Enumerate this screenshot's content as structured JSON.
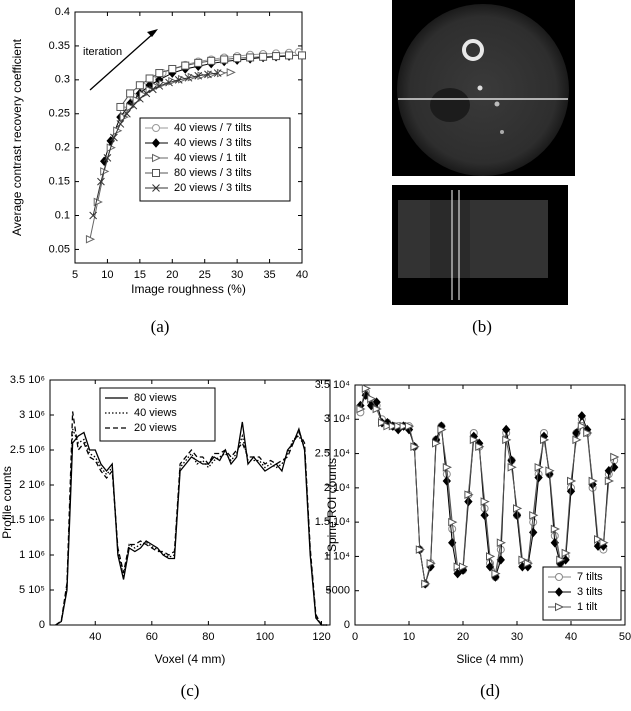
{
  "chart_data": [
    {
      "type": "line",
      "caption": "(a)",
      "xlabel": "Image roughness (%)",
      "ylabel": "Average contrast recovery coefficient",
      "xlim": [
        5,
        40
      ],
      "xticks": [
        5,
        10,
        15,
        20,
        25,
        30,
        35,
        40
      ],
      "ylim": [
        0.03,
        0.4
      ],
      "yticks": [
        0.05,
        0.1,
        0.15,
        0.2,
        0.25,
        0.3,
        0.35,
        0.4
      ],
      "legend": "center-right",
      "annotation": "iteration",
      "series": [
        {
          "name": "40 views / 7 tilts",
          "color": "#999999",
          "marker": "circle",
          "x": [
            12.5,
            14,
            15.5,
            17,
            18.5,
            20,
            22,
            24,
            26,
            28,
            30,
            32,
            34,
            36,
            38,
            39.5
          ],
          "values": [
            0.255,
            0.275,
            0.29,
            0.3,
            0.31,
            0.316,
            0.322,
            0.327,
            0.33,
            0.333,
            0.335,
            0.337,
            0.338,
            0.339,
            0.34,
            0.341
          ]
        },
        {
          "name": "40 views / 3 tilts",
          "color": "#000000",
          "marker": "diamond",
          "x": [
            9.5,
            10.5,
            12,
            13.5,
            15,
            16.5,
            18,
            20,
            22,
            24,
            26,
            28,
            30,
            32,
            34,
            36,
            38
          ],
          "values": [
            0.18,
            0.21,
            0.245,
            0.265,
            0.28,
            0.292,
            0.3,
            0.31,
            0.316,
            0.32,
            0.324,
            0.327,
            0.329,
            0.331,
            0.333,
            0.334,
            0.335
          ]
        },
        {
          "name": "40 views / 1 tilt",
          "color": "#666666",
          "marker": "triangle",
          "x": [
            7.3,
            8.5,
            9.5,
            10.5,
            11.5,
            12.5,
            13.5,
            14.5,
            15.5,
            16.5,
            17.5,
            18.5,
            20,
            21.5,
            23,
            24.5,
            26,
            27.5,
            29
          ],
          "values": [
            0.065,
            0.12,
            0.165,
            0.2,
            0.225,
            0.245,
            0.26,
            0.27,
            0.278,
            0.285,
            0.29,
            0.294,
            0.298,
            0.301,
            0.304,
            0.306,
            0.308,
            0.31,
            0.311
          ]
        },
        {
          "name": "80 views / 3 tilts",
          "color": "#555555",
          "marker": "square",
          "x": [
            12,
            13.5,
            15,
            16.5,
            18,
            20,
            22,
            24,
            26,
            28,
            30,
            32,
            34,
            36,
            38,
            40
          ],
          "values": [
            0.26,
            0.28,
            0.292,
            0.302,
            0.31,
            0.316,
            0.321,
            0.325,
            0.328,
            0.33,
            0.332,
            0.333,
            0.334,
            0.335,
            0.336,
            0.336
          ]
        },
        {
          "name": "20 views / 3 tilts",
          "color": "#333333",
          "marker": "cross",
          "x": [
            7.8,
            9,
            10,
            11,
            12,
            13,
            14,
            15,
            16,
            17,
            18,
            19.5,
            21,
            22.5,
            24,
            25.5,
            27
          ],
          "values": [
            0.1,
            0.15,
            0.185,
            0.215,
            0.235,
            0.25,
            0.262,
            0.272,
            0.28,
            0.286,
            0.291,
            0.296,
            0.3,
            0.303,
            0.306,
            0.308,
            0.31
          ]
        }
      ]
    },
    {
      "type": "line",
      "caption": "(c)",
      "xlabel": "Voxel (4 mm)",
      "ylabel": "Profile counts",
      "xlim": [
        24,
        123
      ],
      "xticks": [
        40,
        60,
        80,
        100,
        120
      ],
      "ylim": [
        0,
        3500000
      ],
      "yticks": [
        0,
        {
          "value": 500000,
          "label": "5 10⁵"
        },
        {
          "value": 1000000,
          "label": "1 10⁶"
        },
        {
          "value": 1500000,
          "label": "1.5 10⁶"
        },
        {
          "value": 2000000,
          "label": "2 10⁶"
        },
        {
          "value": 2500000,
          "label": "2.5 10⁶"
        },
        {
          "value": 3000000,
          "label": "3 10⁶"
        },
        {
          "value": 3500000,
          "label": "3.5 10⁶"
        }
      ],
      "legend": "upper-left",
      "x": [
        26,
        28,
        30,
        32,
        34,
        36,
        38,
        40,
        42,
        44,
        46,
        48,
        50,
        52,
        54,
        56,
        58,
        60,
        62,
        64,
        66,
        68,
        70,
        72,
        74,
        76,
        78,
        80,
        82,
        84,
        86,
        88,
        90,
        92,
        94,
        96,
        98,
        100,
        102,
        104,
        106,
        108,
        110,
        112,
        114,
        116,
        118,
        120,
        122
      ],
      "series": [
        {
          "name": "80 views",
          "color": "#000000",
          "dash": "solid",
          "values": [
            0,
            50000,
            500000,
            2600000,
            2700000,
            2750000,
            2500000,
            2500000,
            2300000,
            2200000,
            2300000,
            1000000,
            650000,
            1100000,
            1050000,
            1100000,
            1200000,
            1150000,
            1100000,
            1000000,
            950000,
            950000,
            2200000,
            2300000,
            2400000,
            2350000,
            2300000,
            2300000,
            2400000,
            2350000,
            2500000,
            2300000,
            2400000,
            2900000,
            2300000,
            2400000,
            2300000,
            2200000,
            2250000,
            2300000,
            2200000,
            2500000,
            2600000,
            2800000,
            2500000,
            1000000,
            100000,
            0,
            0
          ]
        },
        {
          "name": "40 views",
          "color": "#000000",
          "dash": "dotted",
          "values": [
            0,
            50000,
            550000,
            2800000,
            2600000,
            2650000,
            2450000,
            2400000,
            2250000,
            2150000,
            2250000,
            1050000,
            700000,
            1150000,
            1100000,
            1150000,
            1180000,
            1120000,
            1080000,
            1020000,
            970000,
            1000000,
            2250000,
            2350000,
            2450000,
            2300000,
            2350000,
            2250000,
            2350000,
            2400000,
            2450000,
            2350000,
            2450000,
            2700000,
            2350000,
            2350000,
            2350000,
            2250000,
            2300000,
            2250000,
            2300000,
            2450000,
            2650000,
            2700000,
            2550000,
            1050000,
            120000,
            0,
            0
          ]
        },
        {
          "name": "20 views",
          "color": "#000000",
          "dash": "dashed",
          "values": [
            0,
            60000,
            600000,
            3050000,
            2500000,
            2600000,
            2400000,
            2350000,
            2200000,
            2100000,
            2200000,
            1100000,
            750000,
            1150000,
            1150000,
            1200000,
            1150000,
            1100000,
            1050000,
            1050000,
            1000000,
            1050000,
            2300000,
            2400000,
            2500000,
            2400000,
            2400000,
            2300000,
            2450000,
            2450000,
            2500000,
            2400000,
            2500000,
            2600000,
            2400000,
            2400000,
            2400000,
            2300000,
            2350000,
            2300000,
            2350000,
            2400000,
            2600000,
            2750000,
            2600000,
            1100000,
            150000,
            0,
            0
          ]
        }
      ]
    },
    {
      "type": "line",
      "caption": "(d)",
      "xlabel": "Slice (4 mm)",
      "ylabel": "Spine ROI counts",
      "xlim": [
        0,
        50
      ],
      "xticks": [
        0,
        10,
        20,
        30,
        40,
        50
      ],
      "ylim": [
        0,
        35000
      ],
      "yticks": [
        0,
        5000,
        {
          "value": 10000,
          "label": "1 10⁴"
        },
        {
          "value": 15000,
          "label": "1.5 10⁴"
        },
        {
          "value": 20000,
          "label": "2 10⁴"
        },
        {
          "value": 25000,
          "label": "2.5 10⁴"
        },
        {
          "value": 30000,
          "label": "3 10⁴"
        },
        {
          "value": 35000,
          "label": "3.5 10⁴"
        }
      ],
      "legend": "lower-right",
      "x": [
        1,
        2,
        3,
        4,
        5,
        6,
        7,
        8,
        9,
        10,
        11,
        12,
        13,
        14,
        15,
        16,
        17,
        18,
        19,
        20,
        21,
        22,
        23,
        24,
        25,
        26,
        27,
        28,
        29,
        30,
        31,
        32,
        33,
        34,
        35,
        36,
        37,
        38,
        39,
        40,
        41,
        42,
        43,
        44,
        45,
        46,
        47,
        48
      ],
      "series": [
        {
          "name": "7 tilts",
          "color": "#888888",
          "marker": "circle",
          "values": [
            31000,
            34000,
            32500,
            32000,
            30000,
            29500,
            29000,
            29000,
            29000,
            29000,
            26000,
            11000,
            6000,
            9000,
            27000,
            29000,
            22000,
            14000,
            8000,
            8000,
            19000,
            28000,
            26000,
            17000,
            9000,
            7000,
            11000,
            28000,
            24000,
            16000,
            9000,
            9000,
            15000,
            22000,
            28000,
            22000,
            13000,
            9000,
            10000,
            20000,
            28000,
            30000,
            28000,
            20000,
            12000,
            11000,
            22000,
            24000
          ]
        },
        {
          "name": "3 tilts",
          "color": "#000000",
          "marker": "diamond",
          "values": [
            32000,
            33500,
            32000,
            32500,
            29500,
            29500,
            29000,
            28500,
            29000,
            28500,
            26000,
            11000,
            6000,
            8500,
            27000,
            29000,
            21000,
            12000,
            7500,
            8000,
            18000,
            27500,
            26500,
            16000,
            8500,
            7000,
            9500,
            28500,
            24000,
            16000,
            8500,
            8500,
            13500,
            21500,
            27500,
            22000,
            12000,
            9000,
            9500,
            19500,
            28000,
            30500,
            28500,
            20500,
            11500,
            11500,
            22500,
            23000
          ]
        },
        {
          "name": "1 tilt",
          "color": "#555555",
          "marker": "triangle",
          "values": [
            31500,
            34500,
            33000,
            31500,
            29500,
            29000,
            29000,
            29000,
            29000,
            29000,
            26000,
            11000,
            6000,
            9000,
            26500,
            28500,
            23000,
            15000,
            8500,
            8500,
            19000,
            27000,
            26000,
            18000,
            10000,
            7500,
            12000,
            27000,
            23000,
            17000,
            9500,
            9000,
            16000,
            23000,
            27000,
            22500,
            14000,
            9500,
            10500,
            21000,
            27000,
            29000,
            28000,
            21000,
            12500,
            12000,
            21000,
            24500
          ]
        }
      ]
    }
  ],
  "image_panel": {
    "caption": "(b)"
  }
}
